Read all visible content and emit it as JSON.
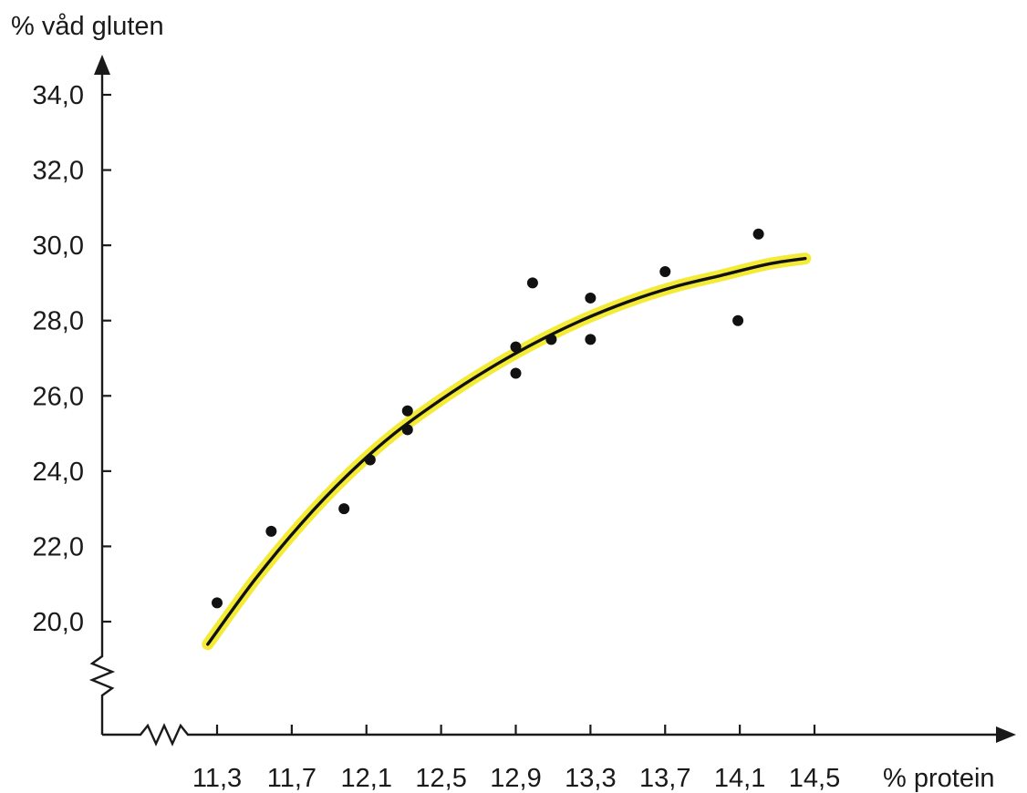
{
  "chart_data": {
    "type": "scatter",
    "title": "",
    "ylabel": "% våd gluten",
    "xlabel": "% protein",
    "x_ticks": [
      "11,3",
      "11,7",
      "12,1",
      "12,5",
      "12,9",
      "13,3",
      "13,7",
      "14,1",
      "14,5"
    ],
    "y_ticks": [
      "20,0",
      "22,0",
      "24,0",
      "26,0",
      "28,0",
      "30,0",
      "32,0",
      "34,0"
    ],
    "x_tick_values": [
      11.3,
      11.7,
      12.1,
      12.5,
      12.9,
      13.3,
      13.7,
      14.1,
      14.5
    ],
    "y_tick_values": [
      20,
      22,
      24,
      26,
      28,
      30,
      32,
      34
    ],
    "xlim": [
      11.3,
      14.5
    ],
    "ylim": [
      20,
      34
    ],
    "axis_breaks": true,
    "grid": false,
    "points": [
      {
        "x": 11.3,
        "y": 20.5
      },
      {
        "x": 11.59,
        "y": 22.4
      },
      {
        "x": 11.98,
        "y": 23.0
      },
      {
        "x": 12.12,
        "y": 24.3
      },
      {
        "x": 12.32,
        "y": 25.6
      },
      {
        "x": 12.32,
        "y": 25.1
      },
      {
        "x": 12.9,
        "y": 27.3
      },
      {
        "x": 12.9,
        "y": 26.6
      },
      {
        "x": 12.99,
        "y": 29.0
      },
      {
        "x": 13.09,
        "y": 27.5
      },
      {
        "x": 13.3,
        "y": 28.6
      },
      {
        "x": 13.3,
        "y": 27.5
      },
      {
        "x": 13.7,
        "y": 29.3
      },
      {
        "x": 14.09,
        "y": 28.0
      },
      {
        "x": 14.2,
        "y": 30.3
      }
    ],
    "trend_line": {
      "highlight_color": "#f2ea2a",
      "line_color": "#111111",
      "points": [
        {
          "x": 11.25,
          "y": 19.4
        },
        {
          "x": 11.5,
          "y": 21.1
        },
        {
          "x": 11.75,
          "y": 22.6
        },
        {
          "x": 12.0,
          "y": 23.9
        },
        {
          "x": 12.25,
          "y": 25.0
        },
        {
          "x": 12.5,
          "y": 25.9
        },
        {
          "x": 12.75,
          "y": 26.7
        },
        {
          "x": 13.0,
          "y": 27.4
        },
        {
          "x": 13.25,
          "y": 28.0
        },
        {
          "x": 13.5,
          "y": 28.5
        },
        {
          "x": 13.75,
          "y": 28.9
        },
        {
          "x": 14.0,
          "y": 29.2
        },
        {
          "x": 14.25,
          "y": 29.5
        },
        {
          "x": 14.45,
          "y": 29.65
        }
      ]
    }
  }
}
